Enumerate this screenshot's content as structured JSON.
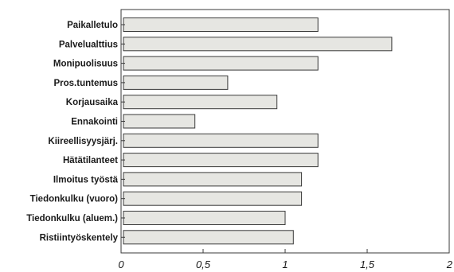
{
  "chart_data": {
    "type": "bar",
    "orientation": "horizontal",
    "title": "",
    "xlabel": "",
    "ylabel": "",
    "categories": [
      "Paikalletulo",
      "Palvelualttius",
      "Monipuolisuus",
      "Pros.tuntemus",
      "Korjausaika",
      "Ennakointi",
      "Kiireellisyysjärj.",
      "Hätätilanteet",
      "Ilmoitus työstä",
      "Tiedonkulku (vuoro)",
      "Tiedonkulku (aluem.)",
      "Ristiintyöskentely"
    ],
    "values": [
      1.2,
      1.65,
      1.2,
      0.65,
      0.95,
      0.45,
      1.2,
      1.2,
      1.1,
      1.1,
      1.0,
      1.05
    ],
    "xlim": [
      0,
      2
    ],
    "xticks": [
      0,
      0.5,
      1,
      1.5,
      2
    ],
    "xtick_labels": [
      "0",
      "0,5",
      "1",
      "1,5",
      "2"
    ],
    "grid": false,
    "legend": "none",
    "colors": {
      "bar_fill": "#e6e6e2",
      "bar_stroke": "#3a3a3a"
    }
  }
}
